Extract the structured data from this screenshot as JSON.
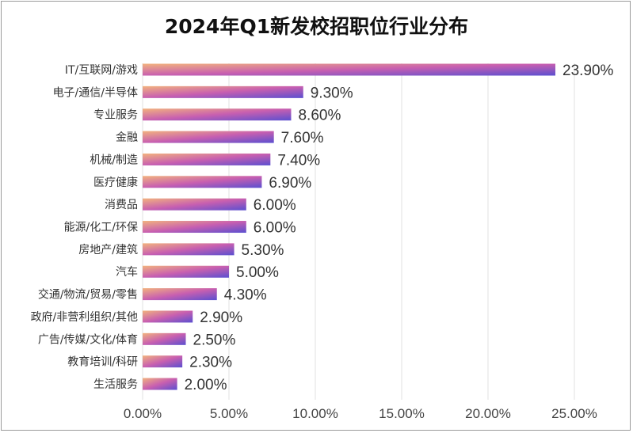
{
  "chart_data": {
    "type": "bar",
    "orientation": "horizontal",
    "title": "2024年Q1新发校招职位行业分布",
    "categories": [
      "IT/互联网/游戏",
      "电子/通信/半导体",
      "专业服务",
      "金融",
      "机械/制造",
      "医疗健康",
      "消费品",
      "能源/化工/环保",
      "房地产/建筑",
      "汽车",
      "交通/物流/贸易/零售",
      "政府/非营利组织/其他",
      "广告/传媒/文化/体育",
      "教育培训/科研",
      "生活服务"
    ],
    "values": [
      23.9,
      9.3,
      8.6,
      7.6,
      7.4,
      6.9,
      6.0,
      6.0,
      5.3,
      5.0,
      4.3,
      2.9,
      2.5,
      2.3,
      2.0
    ],
    "data_labels": [
      "23.90%",
      "9.30%",
      "8.60%",
      "7.60%",
      "7.40%",
      "6.90%",
      "6.00%",
      "6.00%",
      "5.30%",
      "5.00%",
      "4.30%",
      "2.90%",
      "2.50%",
      "2.30%",
      "2.00%"
    ],
    "xlim": [
      0,
      25
    ],
    "xticks": [
      "0.00%",
      "5.00%",
      "10.00%",
      "15.00%",
      "20.00%",
      "25.00%"
    ],
    "grid": "vertical",
    "legend": "none",
    "bar_gradient": [
      "#f2b27e",
      "#c85fb0",
      "#5b4fd0"
    ]
  }
}
